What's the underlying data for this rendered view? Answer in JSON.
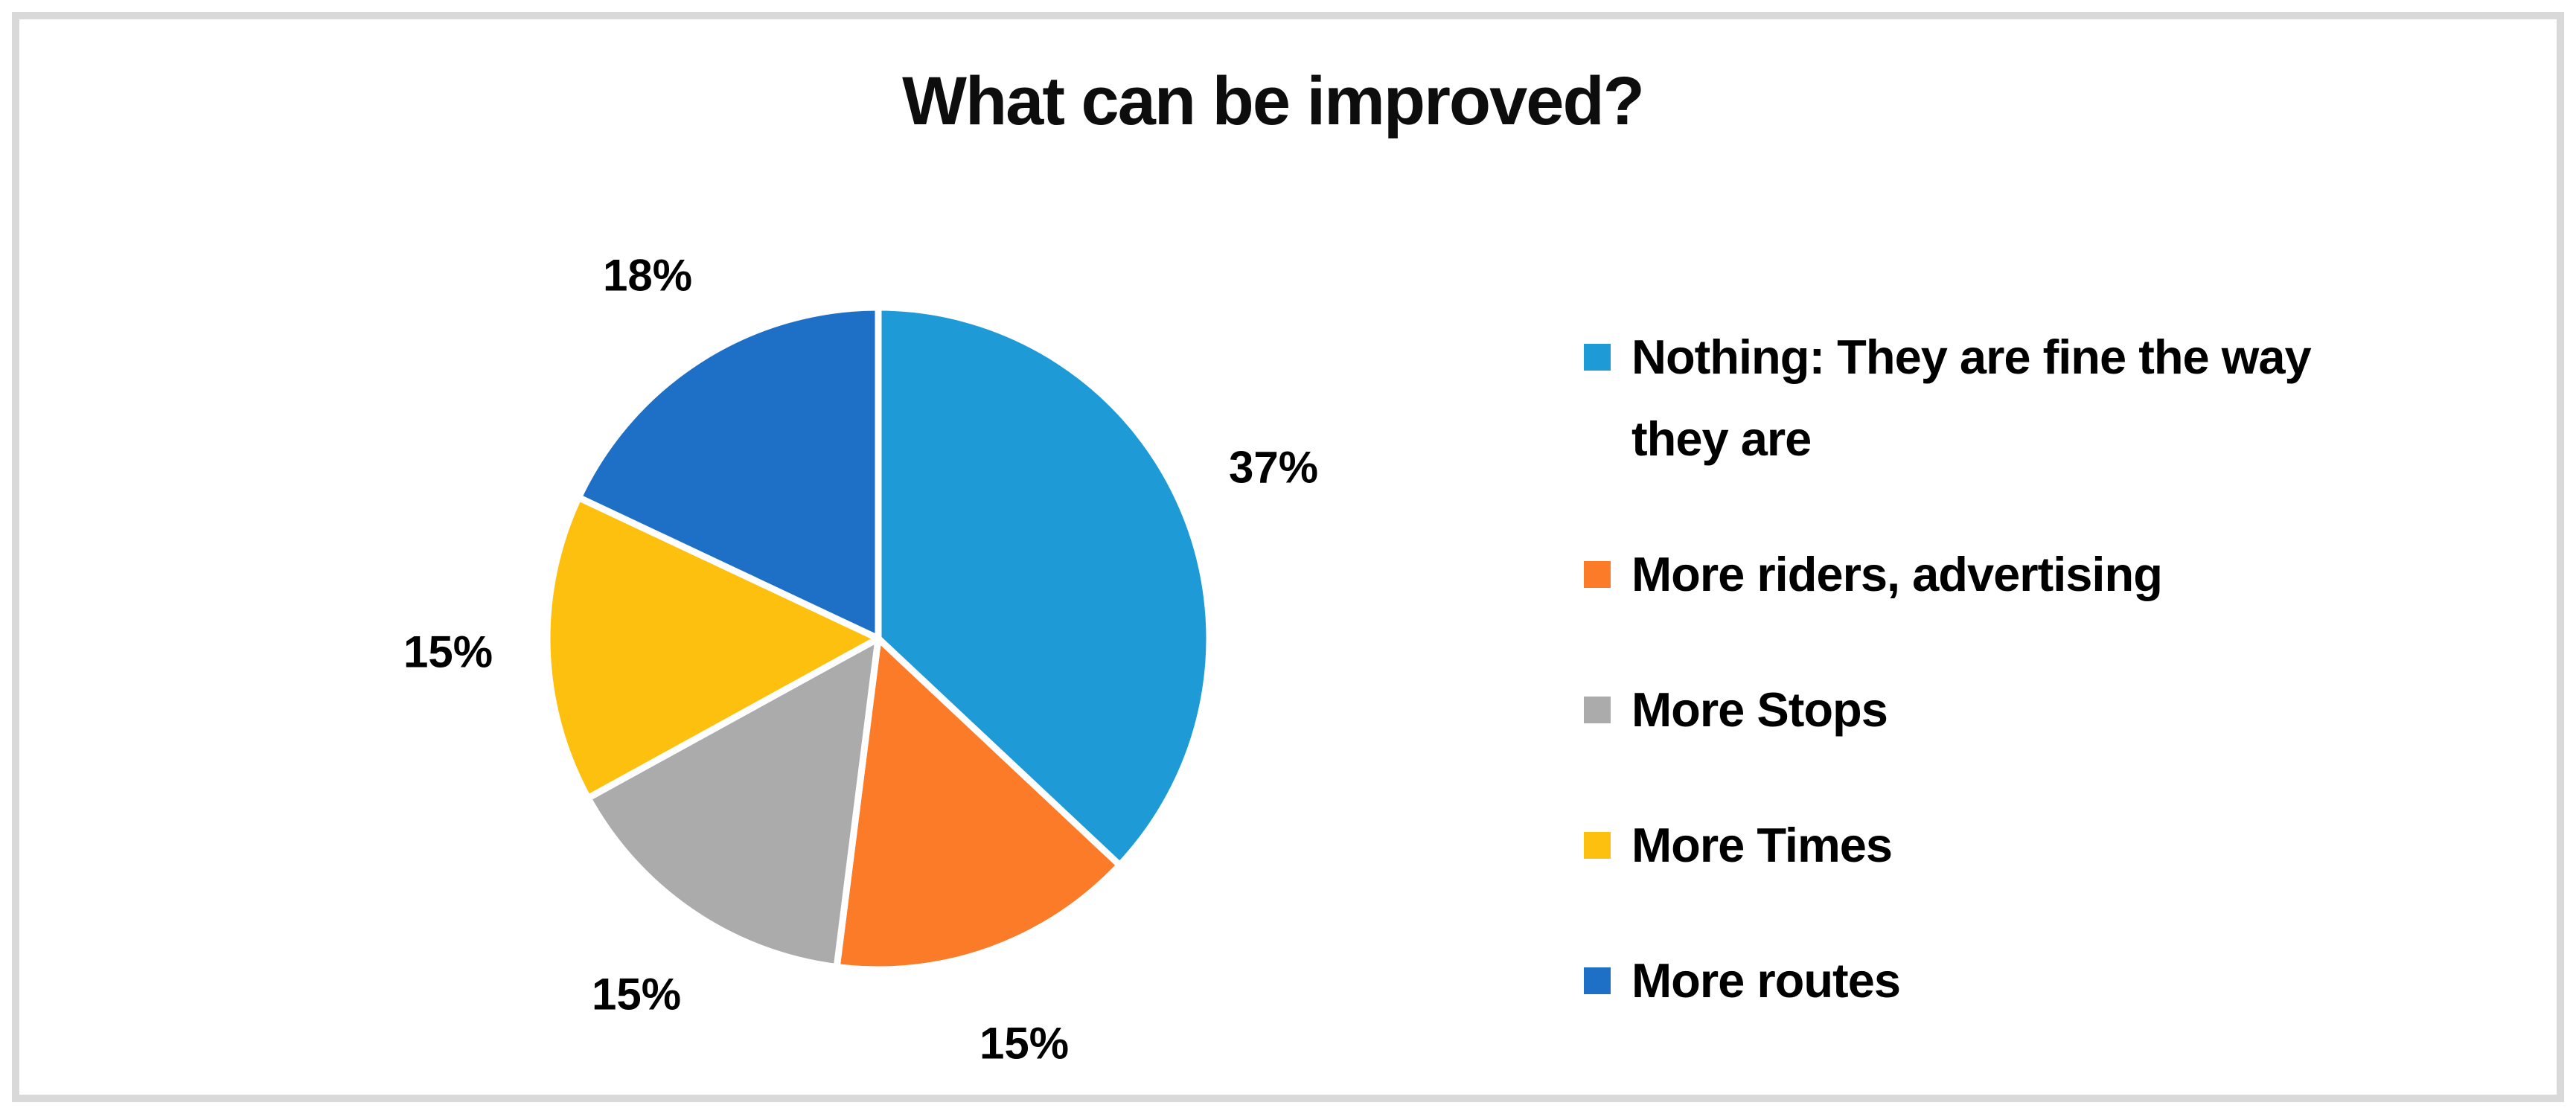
{
  "frame": {
    "border_color": "#D9D9D9"
  },
  "chart_data": {
    "type": "pie",
    "title": "What can be improved?",
    "categories": [
      "Nothing: They are fine the way they are",
      "More riders, advertising",
      "More Stops",
      "More Times",
      "More routes"
    ],
    "values": [
      37,
      15,
      15,
      15,
      18
    ],
    "labels": [
      "37%",
      "15%",
      "15%",
      "15%",
      "18%"
    ],
    "colors": [
      "#1E9BD7",
      "#FB7B28",
      "#ABABAB",
      "#FEC00F",
      "#1D70C5"
    ],
    "slice_border_color": "#FFFFFF",
    "start_angle_deg": 0,
    "direction": "clockwise",
    "legend_position": "right",
    "data_label_position": "outside-end"
  }
}
